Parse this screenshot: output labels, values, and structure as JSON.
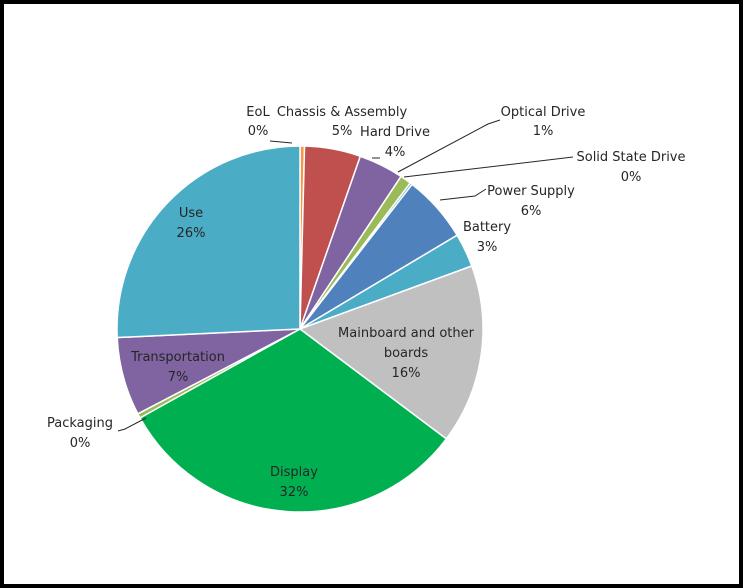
{
  "chart_data": {
    "type": "pie",
    "title": "",
    "series": [
      {
        "values": [
          0.4,
          5,
          4,
          1,
          0.2,
          6,
          3,
          16,
          32,
          0.4,
          7,
          26
        ]
      }
    ],
    "categories": [
      "EoL",
      "Chassis & Assembly",
      "Hard Drive",
      "Optical Drive",
      "Solid State Drive",
      "Power Supply",
      "Battery",
      "Mainboard and other boards",
      "Display",
      "Packaging",
      "Transportation",
      "Use"
    ],
    "labels": [
      {
        "name": "EoL",
        "pct": "0%"
      },
      {
        "name": "Chassis & Assembly",
        "pct": "5%"
      },
      {
        "name": "Hard Drive",
        "pct": "4%"
      },
      {
        "name": "Optical Drive",
        "pct": "1%"
      },
      {
        "name": "Solid State Drive",
        "pct": "0%"
      },
      {
        "name": "Power Supply",
        "pct": "6%"
      },
      {
        "name": "Battery",
        "pct": "3%"
      },
      {
        "name": "Mainboard and other",
        "name2": "boards",
        "pct": "16%"
      },
      {
        "name": "Display",
        "pct": "32%"
      },
      {
        "name": "Packaging",
        "pct": "0%"
      },
      {
        "name": "Transportation",
        "pct": "7%"
      },
      {
        "name": "Use",
        "pct": "26%"
      }
    ],
    "colors": [
      "#F79646",
      "#C0504D",
      "#8064A2",
      "#9BBB59",
      "#4BACC6",
      "#4F81BD",
      "#4BACC6",
      "#C0C0C0",
      "#00B050",
      "#9BBB59",
      "#8064A2",
      "#4BACC6"
    ],
    "start_angle_deg": 0,
    "direction": "clockwise"
  }
}
